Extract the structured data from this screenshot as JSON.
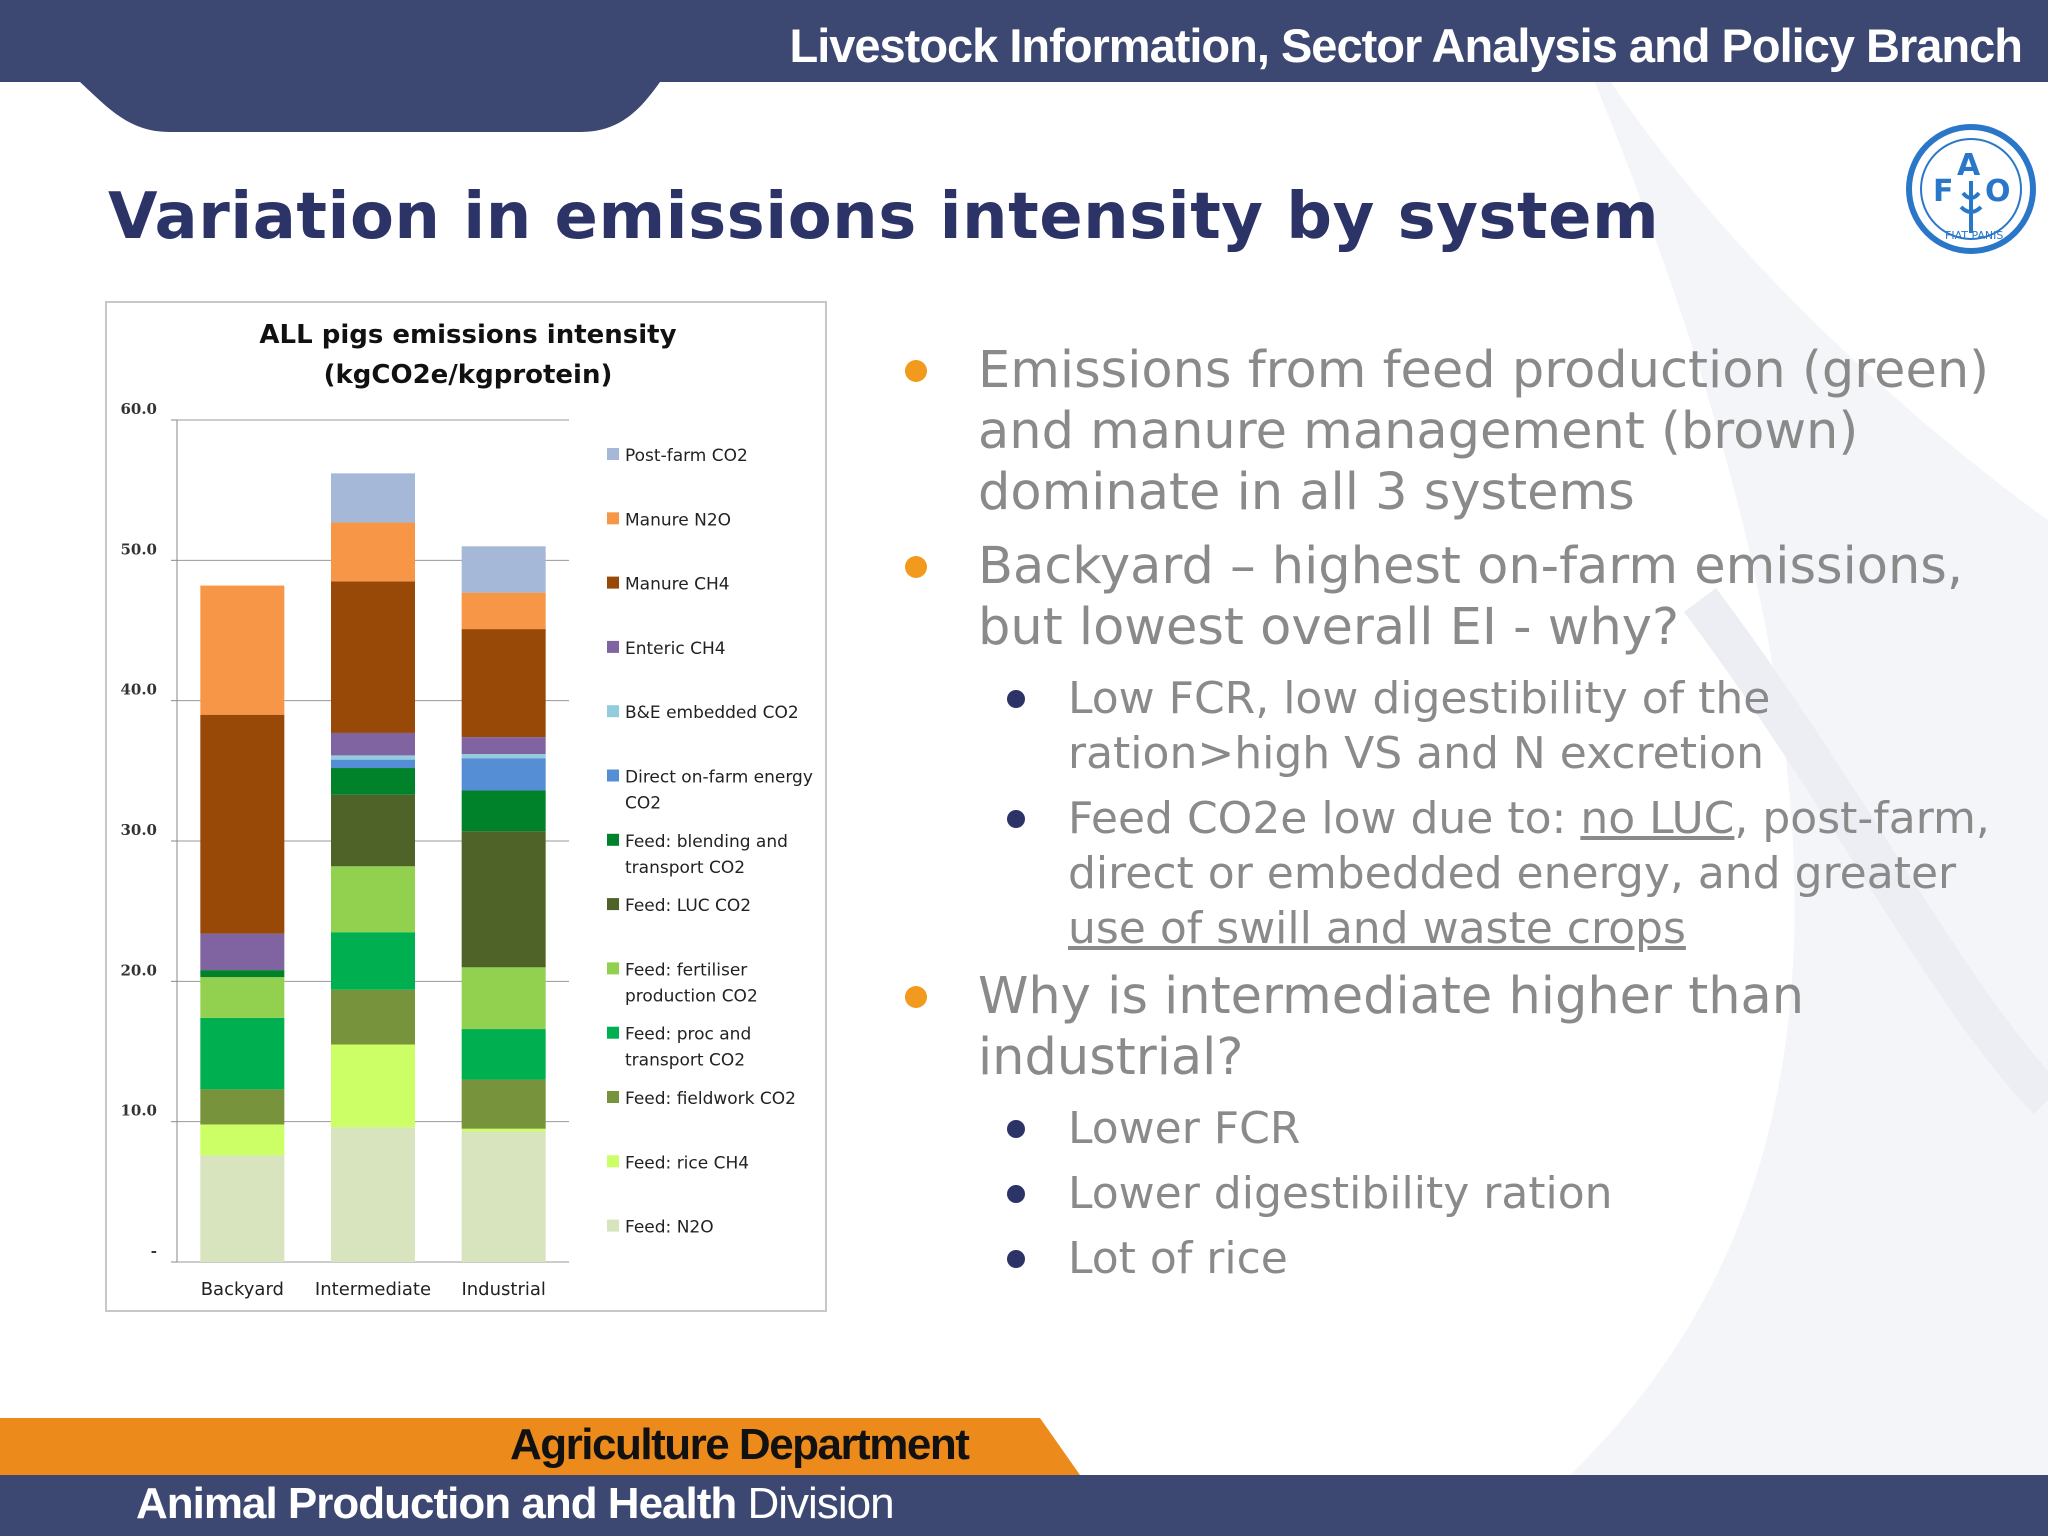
{
  "header": {
    "branch": "Livestock Information, Sector Analysis and Policy Branch"
  },
  "logo": {
    "name": "FAO",
    "motto": "FIAT PANIS"
  },
  "slide": {
    "title": "Variation in emissions intensity by system"
  },
  "colors": {
    "navy": "#3c4872",
    "orange": "#ec8a1c",
    "title": "#2b3367",
    "bullet_orange": "#f29a1e"
  },
  "bullets": {
    "b1": "Emissions from feed production (green) and manure management (brown) dominate in all 3 systems",
    "b2": "Backyard – highest on-farm emissions, but lowest overall EI - why?",
    "b2a": "Low FCR, low digestibility of the ration>high VS and N excretion",
    "b2b_pre": "Feed CO2e low due to: ",
    "b2b_u1": "no LUC",
    "b2b_mid": ", post-farm, direct or embedded energy, and greater ",
    "b2b_u2": "use of swill and waste crops",
    "b3": "Why is intermediate higher than industrial?",
    "b3a": "Lower FCR",
    "b3b": "Lower digestibility ration",
    "b3c": "Lot of rice"
  },
  "footer": {
    "department": "Agriculture Department",
    "division_bold": "Animal Production and Health",
    "division_regular": " Division"
  },
  "chart_data": {
    "type": "bar",
    "stacked": true,
    "title": [
      "ALL pigs emissions intensity",
      "(kgCO2e/kgprotein)"
    ],
    "categories": [
      "Backyard",
      "Intermediate",
      "Industrial"
    ],
    "ylim": [
      0,
      60
    ],
    "yticks": [
      "-",
      "10.0",
      "20.0",
      "30.0",
      "40.0",
      "50.0",
      "60.0"
    ],
    "grid": true,
    "legend_position": "right",
    "series": [
      {
        "name": "Feed: N2O",
        "color": "#d7e4bd",
        "values": [
          7.6,
          9.6,
          9.3
        ]
      },
      {
        "name": "Feed: rice CH4",
        "color": "#ccff66",
        "values": [
          2.2,
          5.9,
          0.2
        ]
      },
      {
        "name": "Feed: fieldwork CO2",
        "color": "#77933c",
        "values": [
          2.5,
          3.9,
          3.5
        ]
      },
      {
        "name": "Feed: proc and transport CO2",
        "color": "#00b050",
        "values": [
          5.1,
          4.1,
          3.6
        ]
      },
      {
        "name": "Feed: fertiliser production CO2",
        "color": "#92d050",
        "values": [
          2.9,
          4.7,
          4.4
        ]
      },
      {
        "name": "Feed: LUC CO2",
        "color": "#4f6228",
        "values": [
          0.0,
          5.1,
          9.7
        ]
      },
      {
        "name": "Feed: blending and transport CO2",
        "color": "#00822a",
        "values": [
          0.5,
          1.9,
          2.9
        ]
      },
      {
        "name": "Direct on-farm energy CO2",
        "color": "#558ed5",
        "values": [
          0.0,
          0.6,
          2.3
        ]
      },
      {
        "name": "B&E embedded CO2",
        "color": "#93cddd",
        "values": [
          0.0,
          0.3,
          0.3
        ]
      },
      {
        "name": "Enteric CH4",
        "color": "#8064a2",
        "values": [
          2.6,
          1.6,
          1.2
        ]
      },
      {
        "name": "Manure CH4",
        "color": "#984807",
        "values": [
          15.6,
          10.8,
          7.7
        ]
      },
      {
        "name": "Manure N2O",
        "color": "#f79646",
        "values": [
          9.2,
          4.2,
          2.6
        ]
      },
      {
        "name": "Post-farm CO2",
        "color": "#a6b8d8",
        "values": [
          0.0,
          3.5,
          3.3
        ]
      }
    ]
  }
}
